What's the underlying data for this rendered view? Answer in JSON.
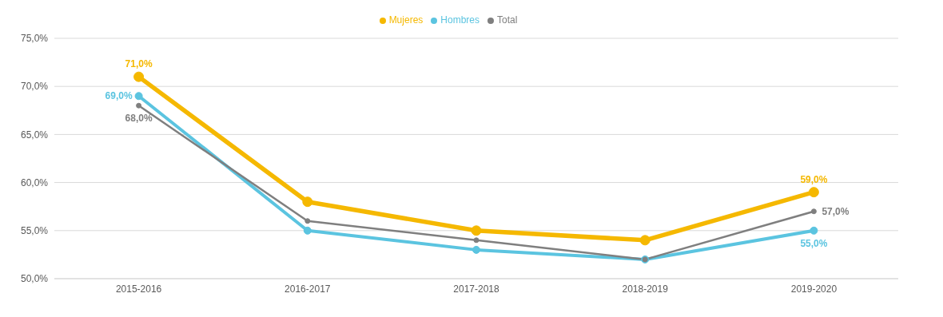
{
  "chart_data": {
    "type": "line",
    "categories": [
      "2015-2016",
      "2016-2017",
      "2017-2018",
      "2018-2019",
      "2019-2020"
    ],
    "series": [
      {
        "name": "Mujeres",
        "color": "#f5b800",
        "values": [
          71,
          58,
          55,
          54,
          59
        ],
        "value_labels": [
          "71,0%",
          null,
          null,
          null,
          "59,0%"
        ]
      },
      {
        "name": "Hombres",
        "color": "#5bc4e0",
        "values": [
          69,
          55,
          53,
          52,
          55
        ],
        "value_labels": [
          "69,0%",
          null,
          null,
          null,
          "55,0%"
        ]
      },
      {
        "name": "Total",
        "color": "#7f7f7f",
        "values": [
          68,
          56,
          54,
          52,
          57
        ],
        "value_labels": [
          "68,0%",
          null,
          null,
          null,
          "57,0%"
        ]
      }
    ],
    "ylim": [
      50,
      75
    ],
    "yticks": [
      {
        "value": 50,
        "label": "50,0%"
      },
      {
        "value": 55,
        "label": "55,0%"
      },
      {
        "value": 60,
        "label": "60,0%"
      },
      {
        "value": 65,
        "label": "65,0%"
      },
      {
        "value": 70,
        "label": "70,0%"
      },
      {
        "value": 75,
        "label": "75,0%"
      }
    ],
    "grid": "y",
    "legend": "top",
    "marker": "circle",
    "line_style": "solid"
  }
}
